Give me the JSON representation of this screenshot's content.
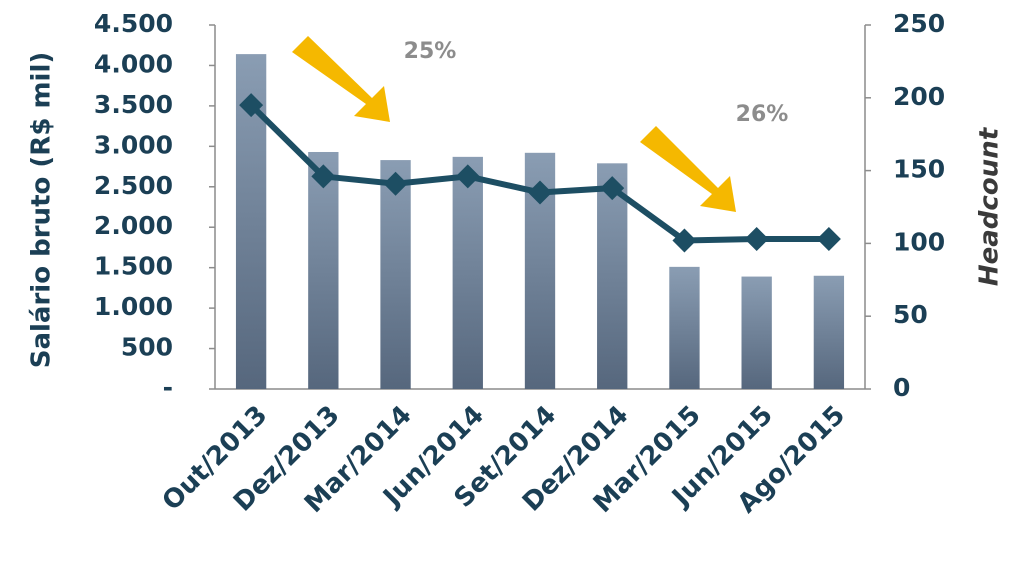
{
  "chart_data": {
    "type": "bar-line",
    "ylabel": "Salário bruto (R$ mil)",
    "y2label": "Headcount",
    "annotations": [
      "25%",
      "26%"
    ],
    "categories": [
      "Out/2013",
      "Dez/2013",
      "Mar/2014",
      "Jun/2014",
      "Set/2014",
      "Dez/2014",
      "Mar/2015",
      "Jun/2015",
      "Ago/2015"
    ],
    "series": [
      {
        "type": "bar",
        "color": "#6f8299",
        "values": [
          4140,
          2930,
          2830,
          2870,
          2920,
          2790,
          1510,
          1390,
          1400
        ]
      },
      {
        "type": "line",
        "axis": "y2",
        "color": "#1d4e63",
        "values": [
          195,
          146,
          141,
          146,
          135,
          138,
          102,
          103,
          103
        ]
      }
    ],
    "ylim": [
      0,
      4500
    ],
    "yticks": [
      {
        "value": 0,
        "label": "-"
      },
      500,
      {
        "value": 1000,
        "label": "1.000"
      },
      {
        "value": 1500,
        "label": "1.500"
      },
      {
        "value": 2000,
        "label": "2.000"
      },
      {
        "value": 2500,
        "label": "2.500"
      },
      {
        "value": 3000,
        "label": "3.000"
      },
      {
        "value": 3500,
        "label": "3.500"
      },
      {
        "value": 4000,
        "label": "4.000"
      },
      {
        "value": 4500,
        "label": "4.500"
      }
    ],
    "y2lim": [
      0,
      250
    ],
    "y2ticks": [
      0,
      50,
      100,
      150,
      200,
      250
    ],
    "grid": false
  }
}
